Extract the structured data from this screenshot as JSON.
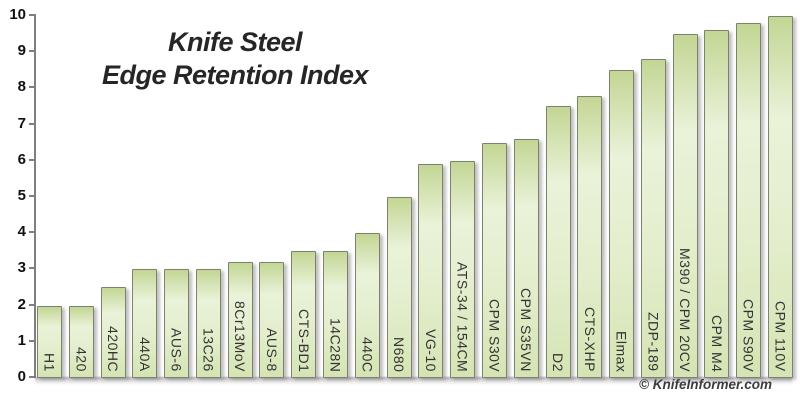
{
  "chart_data": {
    "type": "bar",
    "title_lines": [
      "Knife Steel",
      "Edge Retention Index"
    ],
    "categories": [
      "H1",
      "420",
      "420HC",
      "440A",
      "AUS-6",
      "13C26",
      "8Cr13MoV",
      "AUS-8",
      "CTS-BD1",
      "14C28N",
      "440C",
      "N680",
      "VG-10",
      "ATS-34 / 154CM",
      "CPM S30V",
      "CPM S35VN",
      "D2",
      "CTS-XHP",
      "Elmax",
      "ZDP-189",
      "M390 / CPM 20CV",
      "CPM M4",
      "CPM S90V",
      "CPM 110V"
    ],
    "values": [
      2.0,
      2.0,
      2.5,
      3.0,
      3.0,
      3.0,
      3.2,
      3.2,
      3.5,
      3.5,
      4.0,
      5.0,
      5.9,
      6.0,
      6.5,
      6.6,
      7.5,
      7.8,
      8.5,
      8.8,
      9.5,
      9.6,
      9.8,
      10.0
    ],
    "xlabel": "",
    "ylabel": "",
    "ylim": [
      0,
      10
    ],
    "yticks": [
      0,
      1,
      2,
      3,
      4,
      5,
      6,
      7,
      8,
      9,
      10
    ],
    "grid": false,
    "legend": "none",
    "bar_label_position": "inside-bottom-rotated",
    "footer_credit": "© KnifeInformer.com",
    "colors": {
      "bar_top": "#c3d694",
      "bar_light": "#eaf2d9",
      "bar_mid": "#e4eecd",
      "bar_bottom": "#d5e4b4",
      "bar_border": "#7d816f",
      "axis": "#7f7f7f",
      "title_text": "#262626",
      "label_text": "#333333",
      "tick_text": "#111111",
      "credit_text": "#3c3c3c"
    }
  }
}
